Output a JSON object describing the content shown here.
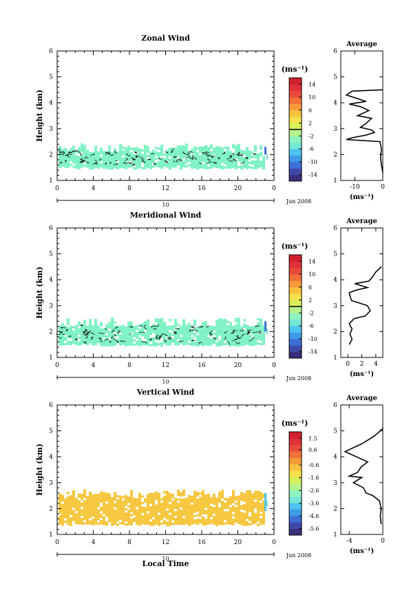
{
  "chart_data": [
    {
      "type": "heatmap",
      "title": "Zonal Wind",
      "ylabel": "Height (km)",
      "xlabel": "",
      "ylim": [
        1,
        6
      ],
      "xlim": [
        0,
        24
      ],
      "yticks": [
        "1",
        "2",
        "3",
        "4",
        "5",
        "6"
      ],
      "xticks": [
        "0",
        "4",
        "8",
        "12",
        "16",
        "20",
        "0"
      ],
      "date_day": "10",
      "date_label": "Jun 2008",
      "colorbar": {
        "unit": "(ms⁻¹)",
        "ticks": [
          "14",
          "10",
          "6",
          "2",
          "-2",
          "-6",
          "-10",
          "-14"
        ],
        "range": [
          -16,
          16
        ],
        "zero_line": 0
      },
      "field": {
        "fill_color": "#7ef2c4",
        "mean_band_km": [
          1.5,
          2.2
        ],
        "contours": true,
        "local_value_near_24h": -10
      },
      "avg_profile": {
        "title": "Average",
        "xlabel": "(ms⁻¹)",
        "xticks": [
          "-10",
          "0"
        ],
        "xlim": [
          -15,
          0
        ],
        "ylim": [
          1,
          6
        ],
        "points": [
          [
            0,
            1.3
          ],
          [
            -0.5,
            1.6
          ],
          [
            -0.8,
            1.9
          ],
          [
            -0.5,
            2.2
          ],
          [
            -1,
            2.5
          ],
          [
            -13,
            2.58
          ],
          [
            -11,
            2.65
          ],
          [
            -6,
            2.75
          ],
          [
            -3,
            2.85
          ],
          [
            -4,
            2.95
          ],
          [
            -8,
            3.05
          ],
          [
            -6,
            3.2
          ],
          [
            -4,
            3.4
          ],
          [
            -9,
            3.5
          ],
          [
            -5,
            3.7
          ],
          [
            -8,
            3.85
          ],
          [
            -12,
            3.95
          ],
          [
            -6,
            4.05
          ],
          [
            -13,
            4.3
          ],
          [
            -11,
            4.45
          ],
          [
            0,
            4.5
          ]
        ]
      }
    },
    {
      "type": "heatmap",
      "title": "Meridional Wind",
      "ylabel": "Height (km)",
      "xlabel": "",
      "ylim": [
        1,
        6
      ],
      "xlim": [
        0,
        24
      ],
      "yticks": [
        "1",
        "2",
        "3",
        "4",
        "5",
        "6"
      ],
      "xticks": [
        "0",
        "4",
        "8",
        "12",
        "16",
        "20",
        "0"
      ],
      "date_day": "10",
      "date_label": "Jun 2008",
      "colorbar": {
        "unit": "(ms⁻¹)",
        "ticks": [
          "14",
          "10",
          "6",
          "2",
          "-2",
          "-6",
          "-10",
          "-14"
        ],
        "range": [
          -16,
          16
        ],
        "zero_line": 0
      },
      "field": {
        "fill_color": "#7ef2c4",
        "mean_band_km": [
          1.5,
          2.3
        ],
        "contours": true,
        "local_value_near_24h": -10
      },
      "avg_profile": {
        "title": "Average",
        "xlabel": "(ms⁻¹)",
        "xticks": [
          "0",
          "2",
          "4"
        ],
        "xlim": [
          -1,
          5
        ],
        "ylim": [
          1,
          6
        ],
        "points": [
          [
            0.2,
            1.5
          ],
          [
            0.6,
            1.7
          ],
          [
            0.3,
            1.9
          ],
          [
            0.6,
            2.1
          ],
          [
            0.2,
            2.3
          ],
          [
            0.9,
            2.5
          ],
          [
            2.5,
            2.6
          ],
          [
            3.2,
            2.8
          ],
          [
            2.8,
            3.0
          ],
          [
            0.5,
            3.2
          ],
          [
            0.2,
            3.5
          ],
          [
            1.2,
            3.6
          ],
          [
            2.8,
            3.7
          ],
          [
            1.0,
            3.85
          ],
          [
            3.0,
            3.95
          ],
          [
            3.5,
            4.1
          ],
          [
            4.0,
            4.3
          ],
          [
            4.8,
            4.5
          ]
        ]
      }
    },
    {
      "type": "heatmap",
      "title": "Vertical Wind",
      "ylabel": "Height (km)",
      "xlabel": "Local Time",
      "ylim": [
        1,
        6
      ],
      "xlim": [
        0,
        24
      ],
      "yticks": [
        "1",
        "2",
        "3",
        "4",
        "5",
        "6"
      ],
      "xticks": [
        "0",
        "4",
        "8",
        "12",
        "16",
        "20",
        "0"
      ],
      "date_day": "10",
      "date_label": "Jun 2008",
      "colorbar": {
        "unit": "(ms⁻¹)",
        "ticks": [
          "1.5",
          "0.6",
          "-0.6",
          "-1.6",
          "-2.6",
          "-3.6",
          "-4.6",
          "-5.6"
        ],
        "range": [
          -6.1,
          2.0
        ],
        "zero_line": null
      },
      "field": {
        "fill_color": "#f6c63c",
        "mean_band_km": [
          1.4,
          2.5
        ],
        "contours": false,
        "local_value_near_24h": -3
      },
      "avg_profile": {
        "title": "Average",
        "xlabel": "(ms⁻¹)",
        "xticks": [
          "-4",
          "0"
        ],
        "xlim": [
          -5,
          0
        ],
        "ylim": [
          1,
          6
        ],
        "points": [
          [
            -0.2,
            1.4
          ],
          [
            -0.3,
            1.7
          ],
          [
            -0.2,
            2.0
          ],
          [
            -0.4,
            2.3
          ],
          [
            -1.2,
            2.5
          ],
          [
            -2.0,
            2.6
          ],
          [
            -2.3,
            2.8
          ],
          [
            -3.5,
            3.0
          ],
          [
            -2.5,
            3.2
          ],
          [
            -4.0,
            3.25
          ],
          [
            -3.0,
            3.4
          ],
          [
            -2.6,
            3.6
          ],
          [
            -1.8,
            3.8
          ],
          [
            -4.5,
            4.2
          ],
          [
            -2.5,
            4.5
          ],
          [
            -1.0,
            4.8
          ],
          [
            -0.3,
            5.0
          ],
          [
            0,
            5.1
          ]
        ]
      }
    }
  ]
}
